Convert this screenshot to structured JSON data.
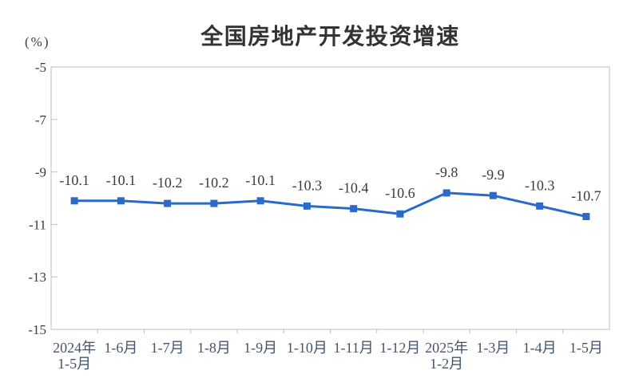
{
  "chart_data": {
    "type": "line",
    "title": "全国房地产开发投资增速",
    "unit_label": "(%)",
    "xlabel": "",
    "ylabel": "(%)",
    "categories": [
      "2024年\n1-5月",
      "1-6月",
      "1-7月",
      "1-8月",
      "1-9月",
      "1-10月",
      "1-11月",
      "1-12月",
      "2025年\n1-2月",
      "1-3月",
      "1-4月",
      "1-5月"
    ],
    "values": [
      -10.1,
      -10.1,
      -10.2,
      -10.2,
      -10.1,
      -10.3,
      -10.4,
      -10.6,
      -9.8,
      -9.9,
      -10.3,
      -10.7
    ],
    "data_labels": [
      "-10.1",
      "-10.1",
      "-10.2",
      "-10.2",
      "-10.1",
      "-10.3",
      "-10.4",
      "-10.6",
      "-9.8",
      "-9.9",
      "-10.3",
      "-10.7"
    ],
    "y_ticks": [
      -5,
      -7,
      -9,
      -11,
      -13,
      -15
    ],
    "ylim": [
      -15,
      -5
    ],
    "grid": false,
    "legend_position": "none",
    "marker": "square",
    "colors": {
      "line": "#2A6AC9",
      "title": "#333333",
      "data_label": "#3B3B3B",
      "y_axis_label": "#3B3B3B",
      "x_axis_label": "#44546A",
      "border": "#BDBDBD",
      "background": "#FFFFFF"
    }
  }
}
